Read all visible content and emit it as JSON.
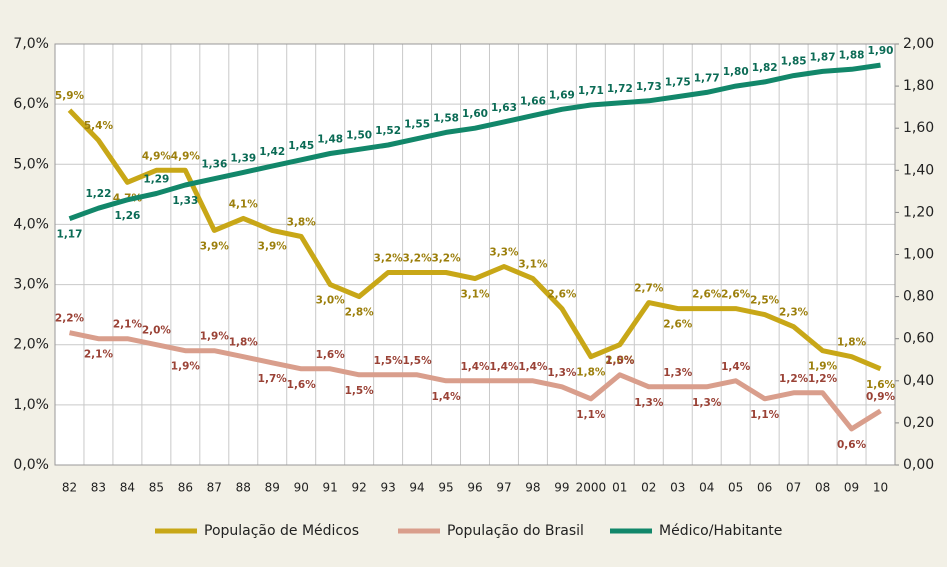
{
  "chart_data": {
    "type": "line",
    "categories": [
      "82",
      "83",
      "84",
      "85",
      "86",
      "87",
      "88",
      "89",
      "90",
      "91",
      "92",
      "93",
      "94",
      "95",
      "96",
      "97",
      "98",
      "99",
      "2000",
      "01",
      "02",
      "03",
      "04",
      "05",
      "06",
      "07",
      "08",
      "09",
      "10"
    ],
    "series": [
      {
        "name": "População de Médicos",
        "color": "#c8a717",
        "label_color": "#9c7f0c",
        "values": [
          5.9,
          5.4,
          4.7,
          4.9,
          4.9,
          3.9,
          4.1,
          3.9,
          3.8,
          3.0,
          2.8,
          3.2,
          3.2,
          3.2,
          3.1,
          3.3,
          3.1,
          2.6,
          1.8,
          2.0,
          2.7,
          2.6,
          2.6,
          2.6,
          2.5,
          2.3,
          1.9,
          1.8,
          1.6
        ],
        "value_labels": [
          "5,9%",
          "5,4%",
          "4,7%",
          "4,9%",
          "4,9%",
          "3,9%",
          "4,1%",
          "3,9%",
          "3,8%",
          "3,0%",
          "2,8%",
          "3,2%",
          "3,2%",
          "3,2%",
          "3,1%",
          "3,3%",
          "3,1%",
          "2,6%",
          "1,8%",
          "2,0%",
          "2,7%",
          "2,6%",
          "2,6%",
          "2,6%",
          "2,5%",
          "2,3%",
          "1,9%",
          "1,8%",
          "1,6%"
        ]
      },
      {
        "name": "População do Brasil",
        "color": "#d99e8c",
        "label_color": "#9a4236",
        "values": [
          2.2,
          2.1,
          2.1,
          2.0,
          1.9,
          1.9,
          1.8,
          1.7,
          1.6,
          1.6,
          1.5,
          1.5,
          1.5,
          1.4,
          1.4,
          1.4,
          1.4,
          1.3,
          1.1,
          1.5,
          1.3,
          1.3,
          1.3,
          1.4,
          1.1,
          1.2,
          1.2,
          0.6,
          0.9
        ],
        "value_labels": [
          "2,2%",
          "2,1%",
          "2,1%",
          "2,0%",
          "1,9%",
          "1,9%",
          "1,8%",
          "1,7%",
          "1,6%",
          "1,6%",
          "1,5%",
          "1,5%",
          "1,5%",
          "1,4%",
          "1,4%",
          "1,4%",
          "1,4%",
          "1,3%",
          "1,1%",
          "1,5%",
          "1,3%",
          "1,3%",
          "1,3%",
          "1,4%",
          "1,1%",
          "1,2%",
          "1,2%",
          "0,6%",
          "0,9%"
        ]
      },
      {
        "name": "Médico/Habitante",
        "color": "#12876a",
        "label_color": "#0b6b55",
        "axis": "y2",
        "values": [
          1.17,
          1.22,
          1.26,
          1.29,
          1.33,
          1.36,
          1.39,
          1.42,
          1.45,
          1.48,
          1.5,
          1.52,
          1.55,
          1.58,
          1.6,
          1.63,
          1.66,
          1.69,
          1.71,
          1.72,
          1.73,
          1.75,
          1.77,
          1.8,
          1.82,
          1.85,
          1.87,
          1.88,
          1.9
        ],
        "value_labels": [
          "1,17",
          "1,22",
          "1,26",
          "1,29",
          "1,33",
          "1,36",
          "1,39",
          "1,42",
          "1,45",
          "1,48",
          "1,50",
          "1,52",
          "1,55",
          "1,58",
          "1,60",
          "1,63",
          "1,66",
          "1,69",
          "1,71",
          "1,72",
          "1,73",
          "1,75",
          "1,77",
          "1,80",
          "1,82",
          "1,85",
          "1,87",
          "1,88",
          "1,90"
        ]
      }
    ],
    "ylim": [
      0,
      7
    ],
    "yticks": [
      {
        "value": 0,
        "label": "0,0%"
      },
      {
        "value": 1,
        "label": "1,0%"
      },
      {
        "value": 2,
        "label": "2,0%"
      },
      {
        "value": 3,
        "label": "3,0%"
      },
      {
        "value": 4,
        "label": "4,0%"
      },
      {
        "value": 5,
        "label": "5,0%"
      },
      {
        "value": 6,
        "label": "6,0%"
      },
      {
        "value": 7,
        "label": "7,0%"
      }
    ],
    "y2lim": [
      0,
      2
    ],
    "y2ticks": [
      {
        "value": 0,
        "label": "0,00"
      },
      {
        "value": 0.2,
        "label": "0,20"
      },
      {
        "value": 0.4,
        "label": "0,40"
      },
      {
        "value": 0.6,
        "label": "0,60"
      },
      {
        "value": 0.8,
        "label": "0,80"
      },
      {
        "value": 1,
        "label": "1,00"
      },
      {
        "value": 1.2,
        "label": "1,20"
      },
      {
        "value": 1.4,
        "label": "1,40"
      },
      {
        "value": 1.6,
        "label": "1,60"
      },
      {
        "value": 1.8,
        "label": "1,80"
      },
      {
        "value": 2,
        "label": "2,00"
      }
    ],
    "grid": true,
    "legend": "bottom"
  }
}
